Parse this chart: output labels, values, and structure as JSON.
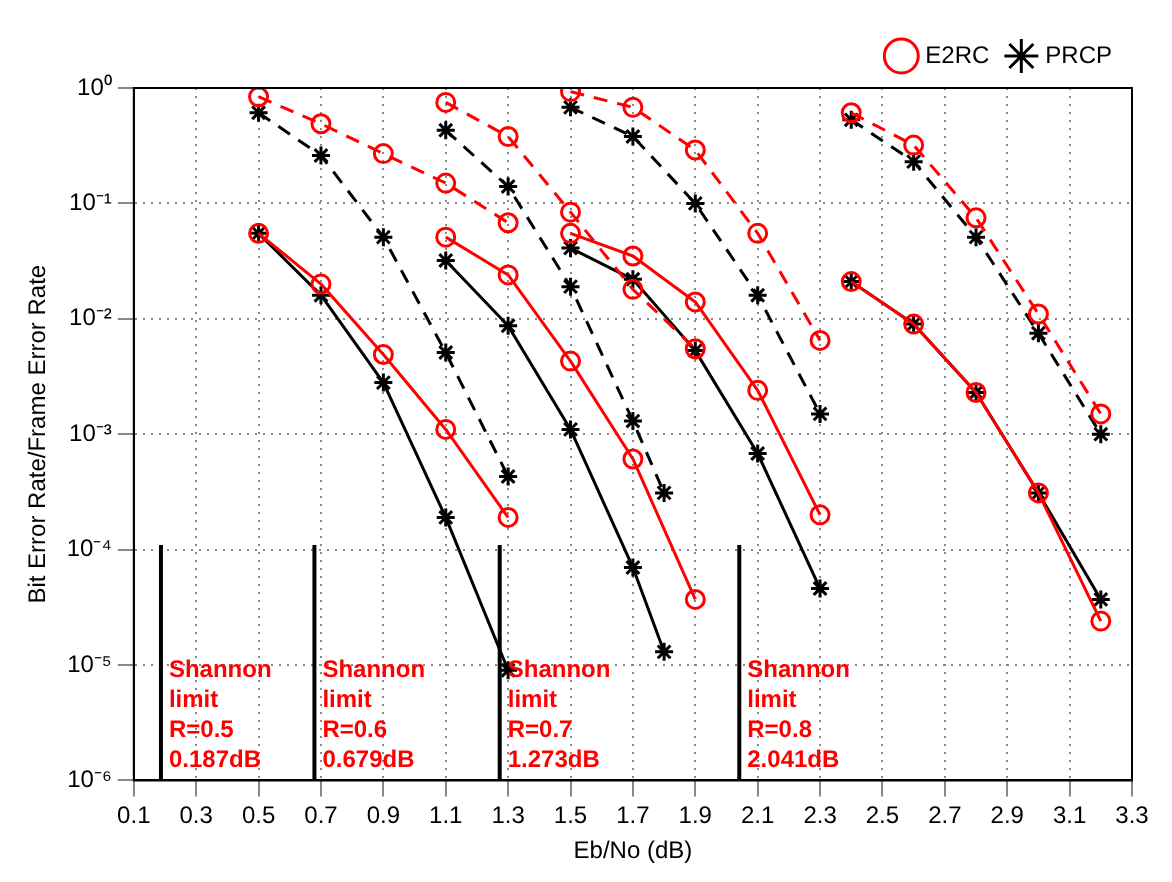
{
  "chart_data": {
    "type": "line",
    "xlabel": "Eb/No (dB)",
    "ylabel": "Bit Error Rate/Frame Error Rate",
    "log": "y",
    "grid": true,
    "legend": "top right",
    "xlim": [
      0.1,
      3.3
    ],
    "xticks": [
      0.1,
      0.3,
      0.5,
      0.7,
      0.9,
      1.1,
      1.3,
      1.5,
      1.7,
      1.9,
      2.1,
      2.3,
      2.5,
      2.7,
      2.9,
      3.1,
      3.3
    ],
    "ylim": [
      1e-06,
      1
    ],
    "yticks": [
      {
        "value": 1e-06,
        "label": "10⁻⁶"
      },
      {
        "value": 1e-05,
        "label": "10⁻⁵"
      },
      {
        "value": 0.0001,
        "label": "10⁻⁴"
      },
      {
        "value": 0.001,
        "label": "10⁻³"
      },
      {
        "value": 0.01,
        "label": "10⁻²"
      },
      {
        "value": 0.1,
        "label": "10⁻¹"
      },
      {
        "value": 1,
        "label": "10⁰"
      }
    ],
    "series": [
      {
        "name": "E2RC",
        "color": "#ff0000",
        "marker": "circle",
        "line_style": "solid",
        "x": [
          0.5,
          0.7,
          0.9,
          1.1,
          1.3
        ],
        "values": [
          0.055,
          0.02,
          0.0049,
          0.0011,
          0.00019
        ]
      },
      {
        "name": "PRCP",
        "color": "#000000",
        "marker": "cross",
        "line_style": "solid",
        "x": [
          0.5,
          0.7,
          0.9,
          1.1,
          1.3
        ],
        "values": [
          0.055,
          0.016,
          0.0028,
          0.00019,
          9e-06
        ]
      },
      {
        "color": "#ff0000",
        "marker": "circle",
        "line_style": "dashed",
        "x": [
          0.5,
          0.7,
          0.9,
          1.1,
          1.3
        ],
        "values": [
          0.84,
          0.49,
          0.27,
          0.15,
          0.068
        ]
      },
      {
        "color": "#000000",
        "marker": "cross",
        "line_style": "dashed",
        "x": [
          0.5,
          0.7,
          0.9,
          1.1,
          1.3
        ],
        "values": [
          0.61,
          0.26,
          0.051,
          0.0051,
          0.00043
        ]
      },
      {
        "color": "#ff0000",
        "marker": "circle",
        "line_style": "solid",
        "x": [
          1.1,
          1.3,
          1.5,
          1.7,
          1.9
        ],
        "values": [
          0.051,
          0.024,
          0.0043,
          0.00061,
          3.7e-05
        ]
      },
      {
        "color": "#000000",
        "marker": "cross",
        "line_style": "solid",
        "x": [
          1.1,
          1.3,
          1.5,
          1.7,
          1.8
        ],
        "values": [
          0.032,
          0.0087,
          0.0011,
          7e-05,
          1.3e-05
        ]
      },
      {
        "color": "#ff0000",
        "marker": "circle",
        "line_style": "dashed",
        "x": [
          1.1,
          1.3,
          1.5,
          1.7,
          1.9
        ],
        "values": [
          0.75,
          0.38,
          0.084,
          0.018,
          0.0055
        ]
      },
      {
        "color": "#000000",
        "marker": "cross",
        "line_style": "dashed",
        "x": [
          1.1,
          1.3,
          1.5,
          1.7,
          1.8
        ],
        "values": [
          0.43,
          0.14,
          0.019,
          0.0013,
          0.00031
        ]
      },
      {
        "color": "#ff0000",
        "marker": "circle",
        "line_style": "solid",
        "x": [
          1.5,
          1.7,
          1.9,
          2.1,
          2.3
        ],
        "values": [
          0.055,
          0.035,
          0.014,
          0.0024,
          0.0002
        ]
      },
      {
        "color": "#000000",
        "marker": "cross",
        "line_style": "solid",
        "x": [
          1.5,
          1.7,
          1.9,
          2.1,
          2.3
        ],
        "values": [
          0.041,
          0.022,
          0.0053,
          0.00068,
          4.6e-05
        ]
      },
      {
        "color": "#ff0000",
        "marker": "circle",
        "line_style": "dashed",
        "x": [
          1.5,
          1.7,
          1.9,
          2.1,
          2.3
        ],
        "values": [
          0.93,
          0.68,
          0.29,
          0.055,
          0.0065
        ]
      },
      {
        "color": "#000000",
        "marker": "cross",
        "line_style": "dashed",
        "x": [
          1.5,
          1.7,
          1.9,
          2.1,
          2.3
        ],
        "values": [
          0.68,
          0.38,
          0.1,
          0.016,
          0.0015
        ]
      },
      {
        "color": "#ff0000",
        "marker": "circle",
        "line_style": "solid",
        "x": [
          2.4,
          2.6,
          2.8,
          3.0,
          3.2
        ],
        "values": [
          0.021,
          0.009,
          0.0023,
          0.00031,
          2.4e-05
        ]
      },
      {
        "color": "#000000",
        "marker": "cross",
        "line_style": "solid",
        "x": [
          2.4,
          2.6,
          2.8,
          3.0,
          3.2
        ],
        "values": [
          0.021,
          0.009,
          0.0023,
          0.00031,
          3.7e-05
        ]
      },
      {
        "color": "#ff0000",
        "marker": "circle",
        "line_style": "dashed",
        "x": [
          2.4,
          2.6,
          2.8,
          3.0,
          3.2
        ],
        "values": [
          0.61,
          0.32,
          0.075,
          0.011,
          0.0015
        ]
      },
      {
        "color": "#000000",
        "marker": "cross",
        "line_style": "dashed",
        "x": [
          2.4,
          2.6,
          2.8,
          3.0,
          3.2
        ],
        "values": [
          0.53,
          0.23,
          0.051,
          0.0075,
          0.001
        ]
      }
    ],
    "ref_lines": [
      {
        "axis": "x",
        "value": 0.187,
        "label": "Shannon\nlimit\nR=0.5\n0.187dB",
        "color": "#000000"
      },
      {
        "axis": "x",
        "value": 0.679,
        "label": "Shannon\nlimit\nR=0.6\n0.679dB",
        "color": "#000000"
      },
      {
        "axis": "x",
        "value": 1.273,
        "label": "Shannon\nlimit\nR=0.7\n1.273dB",
        "color": "#000000"
      },
      {
        "axis": "x",
        "value": 2.041,
        "label": "Shannon\nlimit\nR=0.8\n2.041dB",
        "color": "#000000"
      }
    ]
  }
}
